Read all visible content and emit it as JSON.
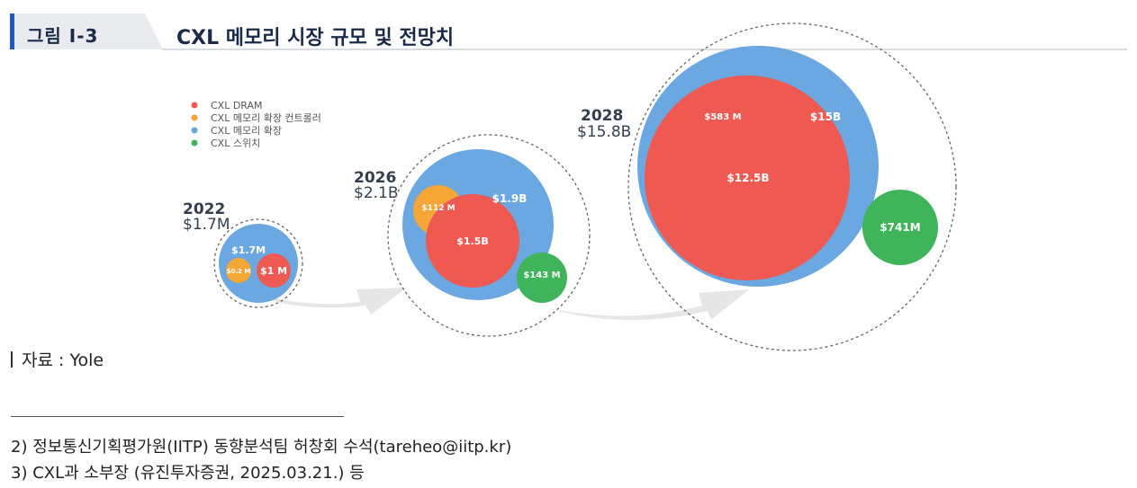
{
  "figure": {
    "number": "그림 I-3",
    "title": "CXL 메모리 시장 규모 및 전망치"
  },
  "colors": {
    "dram": "#ee5a52",
    "controller": "#f4a637",
    "expansion": "#6ba7e0",
    "switch": "#3fb45a",
    "accent": "#1f5bc4"
  },
  "chart_data": {
    "type": "bubble",
    "legend": [
      "CXL DRAM",
      "CXL 메모리 확장 컨트롤러",
      "CXL 메모리 확장",
      "CXL 스위치"
    ],
    "legend_placement": "top-left",
    "years": [
      {
        "year": "2022",
        "total": "$1.7M",
        "expansion": {
          "label": "$1.7M",
          "value_musd": 1.7
        },
        "controller": {
          "label": "$0.2 M",
          "value_musd": 0.2
        },
        "dram": {
          "label": "$1 M",
          "value_musd": 1
        }
      },
      {
        "year": "2026",
        "total": "$2.1B",
        "expansion": {
          "label": "$1.9B",
          "value_musd": 1900
        },
        "controller": {
          "label": "$112 M",
          "value_musd": 112
        },
        "dram": {
          "label": "$1.5B",
          "value_musd": 1500
        },
        "switch": {
          "label": "$143 M",
          "value_musd": 143
        }
      },
      {
        "year": "2028",
        "total": "$15.8B",
        "expansion": {
          "label": "$15B",
          "value_musd": 15000
        },
        "controller": {
          "label": "$583 M",
          "value_musd": 583
        },
        "dram": {
          "label": "$12.5B",
          "value_musd": 12500
        },
        "switch": {
          "label": "$741M",
          "value_musd": 741
        }
      }
    ]
  },
  "source": "자료 : Yole",
  "footnotes": [
    "2) 정보통신기획평가원(IITP) 동향분석팀 허창회 수석(tareheo@iitp.kr)",
    "3) CXL과 소부장 (유진투자증권, 2025.03.21.) 등"
  ]
}
